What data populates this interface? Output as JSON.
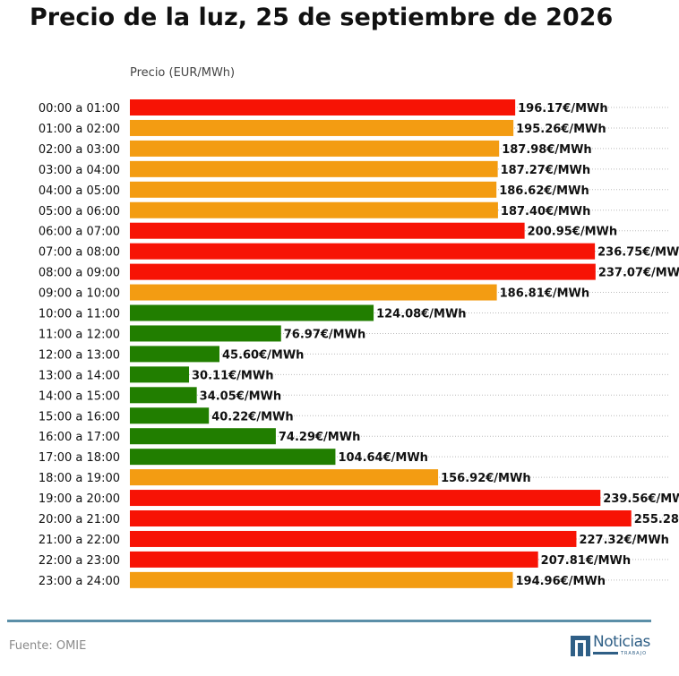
{
  "title": "Precio de la luz, 25 de septiembre de 2026",
  "footer": {
    "source": "Fuente: OMIE"
  },
  "logo": {
    "name": "Noticias",
    "sub": "TRABAJO"
  },
  "colors": {
    "high": "#f71305",
    "mid": "#f39c12",
    "low": "#217e00",
    "grid": "#bbbbbb",
    "footer_line": "#5b8fa8"
  },
  "chart_data": {
    "type": "bar",
    "orientation": "horizontal",
    "ylabel": "Precio (EUR/MWh)",
    "xlim": [
      0,
      275
    ],
    "grid": true,
    "value_suffix": "€/MWh",
    "categories": [
      "00:00 a 01:00",
      "01:00 a 02:00",
      "02:00 a 03:00",
      "03:00 a 04:00",
      "04:00 a 05:00",
      "05:00 a 06:00",
      "06:00 a 07:00",
      "07:00 a 08:00",
      "08:00 a 09:00",
      "09:00 a 10:00",
      "10:00 a 11:00",
      "11:00 a 12:00",
      "12:00 a 13:00",
      "13:00 a 14:00",
      "14:00 a 15:00",
      "15:00 a 16:00",
      "16:00 a 17:00",
      "17:00 a 18:00",
      "18:00 a 19:00",
      "19:00 a 20:00",
      "20:00 a 21:00",
      "21:00 a 22:00",
      "22:00 a 23:00",
      "23:00 a 24:00"
    ],
    "values": [
      196.17,
      195.26,
      187.98,
      187.27,
      186.62,
      187.4,
      200.95,
      236.75,
      237.07,
      186.81,
      124.08,
      76.97,
      45.6,
      30.11,
      34.05,
      40.22,
      74.29,
      104.64,
      156.92,
      239.56,
      255.28,
      227.32,
      207.81,
      194.96
    ],
    "levels": [
      "high",
      "mid",
      "mid",
      "mid",
      "mid",
      "mid",
      "high",
      "high",
      "high",
      "mid",
      "low",
      "low",
      "low",
      "low",
      "low",
      "low",
      "low",
      "low",
      "mid",
      "high",
      "high",
      "high",
      "high",
      "mid"
    ]
  }
}
